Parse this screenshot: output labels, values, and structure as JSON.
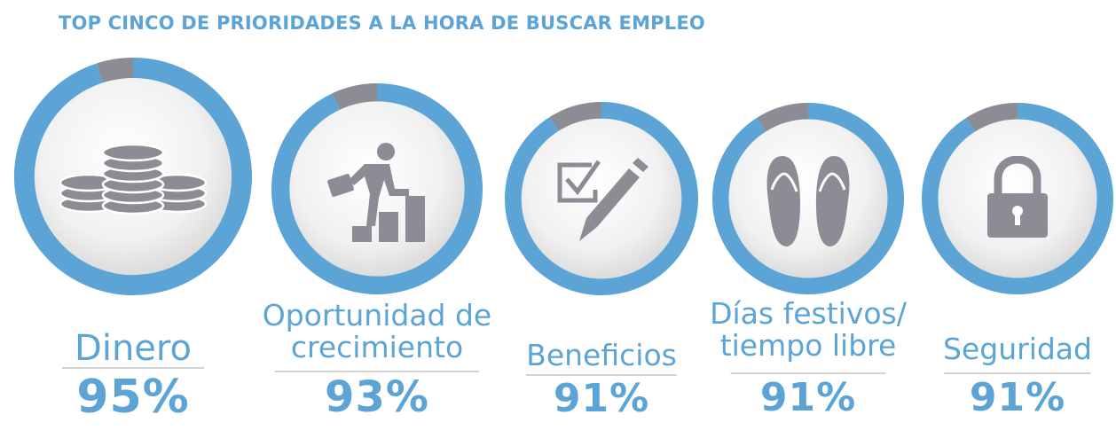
{
  "title": "TOP CINCO DE PRIORIDADES A LA HORA DE BUSCAR EMPLEO",
  "colors": {
    "accent": "#5ba4d5",
    "remainder": "#8c8c94",
    "icon": "#8c8c94",
    "disc": "#efefef"
  },
  "chart_data": {
    "type": "pie",
    "title": "TOP CINCO DE PRIORIDADES A LA HORA DE BUSCAR EMPLEO",
    "categories": [
      "Dinero",
      "Oportunidad de crecimiento",
      "Beneficios",
      "Días festivos/ tiempo libre",
      "Seguridad"
    ],
    "values": [
      95,
      93,
      91,
      91,
      91
    ],
    "unit": "%",
    "items": [
      {
        "label_lines": [
          "Dinero"
        ],
        "value": 95,
        "value_label": "95%",
        "icon": "coins-icon"
      },
      {
        "label_lines": [
          "Oportunidad de",
          "crecimiento"
        ],
        "value": 93,
        "value_label": "93%",
        "icon": "career-growth-icon"
      },
      {
        "label_lines": [
          "Beneficios"
        ],
        "value": 91,
        "value_label": "91%",
        "icon": "checklist-pen-icon"
      },
      {
        "label_lines": [
          "Días festivos/",
          "tiempo libre"
        ],
        "value": 91,
        "value_label": "91%",
        "icon": "flip-flops-icon"
      },
      {
        "label_lines": [
          "Seguridad"
        ],
        "value": 91,
        "value_label": "91%",
        "icon": "padlock-icon"
      }
    ]
  }
}
